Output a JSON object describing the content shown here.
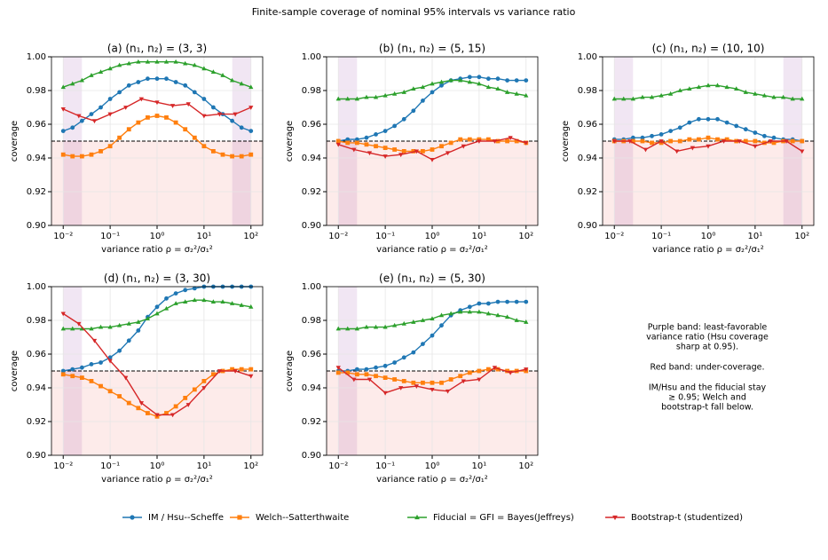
{
  "title": "Finite-sample coverage of nominal 95% intervals vs variance ratio",
  "legend": [
    {
      "name": "IM / Hsu--Scheffe",
      "color": "#1f77b4",
      "marker": "circle"
    },
    {
      "name": "Welch--Satterthwaite",
      "color": "#ff7f0e",
      "marker": "square"
    },
    {
      "name": "Fiducial = GFI = Bayes(Jeffreys)",
      "color": "#2ca02c",
      "marker": "triangle-up"
    },
    {
      "name": "Bootstrap-t (studentized)",
      "color": "#d62728",
      "marker": "triangle-down"
    }
  ],
  "note": [
    "Purple band: least-favorable",
    "variance ratio (Hsu coverage",
    "sharp at 0.95).",
    "Red band: under-coverage.",
    "IM/Hsu and the fiducial stay",
    "≥ 0.95; Welch and",
    "bootstrap-t fall below."
  ],
  "x": [
    0.01,
    0.0158,
    0.0251,
    0.0398,
    0.0631,
    0.1,
    0.158,
    0.251,
    0.398,
    0.631,
    1,
    1.58,
    2.51,
    3.98,
    6.31,
    10,
    15.8,
    25.1,
    39.8,
    63.1,
    100
  ],
  "x_boot": [
    0.01,
    0.0215,
    0.0464,
    0.1,
    0.215,
    0.464,
    1,
    2.15,
    4.64,
    10,
    21.5,
    46.4,
    100
  ],
  "chart_data": [
    {
      "type": "line",
      "title": "(a) (n₁, n₂) = (3, 3)",
      "xlabel": "variance ratio ρ = σ₂²/σ₁²",
      "ylabel": "coverage",
      "xscale": "log",
      "xlim": [
        0.00562,
        178
      ],
      "ylim": [
        0.9,
        1.0
      ],
      "xticks": [
        {
          "value": 0.01,
          "label": "10⁻²"
        },
        {
          "value": 0.1,
          "label": "10⁻¹"
        },
        {
          "value": 1,
          "label": "10⁰"
        },
        {
          "value": 10,
          "label": "10¹"
        },
        {
          "value": 100,
          "label": "10²"
        }
      ],
      "yticks": [
        {
          "value": 0.9,
          "label": "0.90"
        },
        0.92,
        0.94,
        0.96,
        0.98,
        {
          "value": 1.0,
          "label": "1.00"
        }
      ],
      "threshold": 0.95,
      "bands": [
        [
          0.01,
          0.025
        ],
        [
          40,
          100
        ]
      ],
      "series": [
        {
          "values": [
            0.956,
            0.958,
            0.962,
            0.966,
            0.97,
            0.975,
            0.979,
            0.983,
            0.985,
            0.987,
            0.987,
            0.987,
            0.985,
            0.983,
            0.979,
            0.975,
            0.97,
            0.966,
            0.962,
            0.958,
            0.956
          ]
        },
        {
          "values": [
            0.942,
            0.941,
            0.941,
            0.942,
            0.944,
            0.947,
            0.952,
            0.957,
            0.961,
            0.964,
            0.965,
            0.964,
            0.961,
            0.957,
            0.952,
            0.947,
            0.944,
            0.942,
            0.941,
            0.941,
            0.942
          ]
        },
        {
          "values": [
            0.982,
            0.984,
            0.986,
            0.989,
            0.991,
            0.993,
            0.995,
            0.996,
            0.997,
            0.997,
            0.997,
            0.997,
            0.997,
            0.996,
            0.995,
            0.993,
            0.991,
            0.989,
            0.986,
            0.984,
            0.982
          ]
        },
        {
          "values": [
            0.969,
            0.965,
            0.962,
            0.966,
            0.97,
            0.975,
            0.973,
            0.971,
            0.972,
            0.965,
            0.966,
            0.966,
            0.97
          ]
        }
      ]
    },
    {
      "type": "line",
      "title": "(b) (n₁, n₂) = (5, 15)",
      "xlabel": "variance ratio ρ = σ₂²/σ₁²",
      "ylabel": "coverage",
      "xscale": "log",
      "xlim": [
        0.00562,
        178
      ],
      "ylim": [
        0.9,
        1.0
      ],
      "xticks": [
        {
          "value": 0.01,
          "label": "10⁻²"
        },
        {
          "value": 0.1,
          "label": "10⁻¹"
        },
        {
          "value": 1,
          "label": "10⁰"
        },
        {
          "value": 10,
          "label": "10¹"
        },
        {
          "value": 100,
          "label": "10²"
        }
      ],
      "yticks": [
        {
          "value": 0.9,
          "label": "0.90"
        },
        0.92,
        0.94,
        0.96,
        0.98,
        {
          "value": 1.0,
          "label": "1.00"
        }
      ],
      "threshold": 0.95,
      "bands": [
        [
          0.01,
          0.025
        ]
      ],
      "series": [
        {
          "values": [
            0.95,
            0.951,
            0.951,
            0.952,
            0.954,
            0.956,
            0.959,
            0.963,
            0.968,
            0.974,
            0.979,
            0.983,
            0.986,
            0.987,
            0.988,
            0.988,
            0.987,
            0.987,
            0.986,
            0.986,
            0.986
          ]
        },
        {
          "values": [
            0.95,
            0.949,
            0.949,
            0.948,
            0.947,
            0.946,
            0.945,
            0.944,
            0.944,
            0.944,
            0.945,
            0.947,
            0.949,
            0.951,
            0.951,
            0.951,
            0.951,
            0.95,
            0.95,
            0.95,
            0.949
          ]
        },
        {
          "values": [
            0.975,
            0.975,
            0.975,
            0.976,
            0.976,
            0.977,
            0.978,
            0.979,
            0.981,
            0.982,
            0.984,
            0.985,
            0.986,
            0.986,
            0.985,
            0.984,
            0.982,
            0.981,
            0.979,
            0.978,
            0.977
          ]
        },
        {
          "values": [
            0.948,
            0.945,
            0.943,
            0.941,
            0.942,
            0.944,
            0.939,
            0.943,
            0.947,
            0.95,
            0.95,
            0.952,
            0.949
          ]
        }
      ]
    },
    {
      "type": "line",
      "title": "(c) (n₁, n₂) = (10, 10)",
      "xlabel": "variance ratio ρ = σ₂²/σ₁²",
      "ylabel": "coverage",
      "xscale": "log",
      "xlim": [
        0.00562,
        178
      ],
      "ylim": [
        0.9,
        1.0
      ],
      "xticks": [
        {
          "value": 0.01,
          "label": "10⁻²"
        },
        {
          "value": 0.1,
          "label": "10⁻¹"
        },
        {
          "value": 1,
          "label": "10⁰"
        },
        {
          "value": 10,
          "label": "10¹"
        },
        {
          "value": 100,
          "label": "10²"
        }
      ],
      "yticks": [
        {
          "value": 0.9,
          "label": "0.90"
        },
        0.92,
        0.94,
        0.96,
        0.98,
        {
          "value": 1.0,
          "label": "1.00"
        }
      ],
      "threshold": 0.95,
      "bands": [
        [
          0.01,
          0.025
        ],
        [
          40,
          100
        ]
      ],
      "series": [
        {
          "values": [
            0.951,
            0.951,
            0.952,
            0.952,
            0.953,
            0.954,
            0.956,
            0.958,
            0.961,
            0.963,
            0.963,
            0.963,
            0.961,
            0.959,
            0.957,
            0.955,
            0.953,
            0.952,
            0.951,
            0.951,
            0.95
          ]
        },
        {
          "values": [
            0.95,
            0.95,
            0.95,
            0.95,
            0.949,
            0.949,
            0.95,
            0.95,
            0.951,
            0.951,
            0.952,
            0.951,
            0.951,
            0.95,
            0.95,
            0.95,
            0.949,
            0.949,
            0.95,
            0.95,
            0.95
          ]
        },
        {
          "values": [
            0.975,
            0.975,
            0.975,
            0.976,
            0.976,
            0.977,
            0.978,
            0.98,
            0.981,
            0.982,
            0.983,
            0.983,
            0.982,
            0.981,
            0.979,
            0.978,
            0.977,
            0.976,
            0.976,
            0.975,
            0.975
          ]
        },
        {
          "values": [
            0.95,
            0.95,
            0.945,
            0.95,
            0.944,
            0.946,
            0.947,
            0.95,
            0.95,
            0.947,
            0.95,
            0.95,
            0.944
          ]
        }
      ]
    },
    {
      "type": "line",
      "title": "(d) (n₁, n₂) = (3, 30)",
      "xlabel": "variance ratio ρ = σ₂²/σ₁²",
      "ylabel": "coverage",
      "xscale": "log",
      "xlim": [
        0.00562,
        178
      ],
      "ylim": [
        0.9,
        1.0
      ],
      "xticks": [
        {
          "value": 0.01,
          "label": "10⁻²"
        },
        {
          "value": 0.1,
          "label": "10⁻¹"
        },
        {
          "value": 1,
          "label": "10⁰"
        },
        {
          "value": 10,
          "label": "10¹"
        },
        {
          "value": 100,
          "label": "10²"
        }
      ],
      "yticks": [
        {
          "value": 0.9,
          "label": "0.90"
        },
        0.92,
        0.94,
        0.96,
        0.98,
        {
          "value": 1.0,
          "label": "1.00"
        }
      ],
      "threshold": 0.95,
      "bands": [
        [
          0.01,
          0.025
        ]
      ],
      "series": [
        {
          "values": [
            0.95,
            0.951,
            0.952,
            0.954,
            0.955,
            0.958,
            0.962,
            0.968,
            0.974,
            0.982,
            0.988,
            0.993,
            0.996,
            0.998,
            0.999,
            1.0,
            1.0,
            1.0,
            1.0,
            1.0,
            1.0
          ]
        },
        {
          "values": [
            0.948,
            0.947,
            0.946,
            0.944,
            0.941,
            0.938,
            0.935,
            0.931,
            0.928,
            0.925,
            0.923,
            0.925,
            0.929,
            0.934,
            0.939,
            0.944,
            0.948,
            0.95,
            0.951,
            0.951,
            0.951
          ]
        },
        {
          "values": [
            0.975,
            0.975,
            0.975,
            0.975,
            0.976,
            0.976,
            0.977,
            0.978,
            0.979,
            0.981,
            0.984,
            0.987,
            0.99,
            0.991,
            0.992,
            0.992,
            0.991,
            0.991,
            0.99,
            0.989,
            0.988
          ]
        },
        {
          "values": [
            0.984,
            0.978,
            0.968,
            0.956,
            0.946,
            0.931,
            0.924,
            0.924,
            0.93,
            0.94,
            0.95,
            0.95,
            0.947
          ]
        }
      ]
    },
    {
      "type": "line",
      "title": "(e) (n₁, n₂) = (5, 30)",
      "xlabel": "variance ratio ρ = σ₂²/σ₁²",
      "ylabel": "coverage",
      "xscale": "log",
      "xlim": [
        0.00562,
        178
      ],
      "ylim": [
        0.9,
        1.0
      ],
      "xticks": [
        {
          "value": 0.01,
          "label": "10⁻²"
        },
        {
          "value": 0.1,
          "label": "10⁻¹"
        },
        {
          "value": 1,
          "label": "10⁰"
        },
        {
          "value": 10,
          "label": "10¹"
        },
        {
          "value": 100,
          "label": "10²"
        }
      ],
      "yticks": [
        {
          "value": 0.9,
          "label": "0.90"
        },
        0.92,
        0.94,
        0.96,
        0.98,
        {
          "value": 1.0,
          "label": "1.00"
        }
      ],
      "threshold": 0.95,
      "bands": [
        [
          0.01,
          0.025
        ]
      ],
      "series": [
        {
          "values": [
            0.95,
            0.95,
            0.951,
            0.951,
            0.952,
            0.953,
            0.955,
            0.958,
            0.961,
            0.966,
            0.971,
            0.977,
            0.983,
            0.986,
            0.988,
            0.99,
            0.99,
            0.991,
            0.991,
            0.991,
            0.991
          ]
        },
        {
          "values": [
            0.949,
            0.949,
            0.948,
            0.948,
            0.947,
            0.946,
            0.945,
            0.944,
            0.943,
            0.943,
            0.943,
            0.943,
            0.945,
            0.947,
            0.949,
            0.95,
            0.951,
            0.951,
            0.95,
            0.95,
            0.95
          ]
        },
        {
          "values": [
            0.975,
            0.975,
            0.975,
            0.976,
            0.976,
            0.976,
            0.977,
            0.978,
            0.979,
            0.98,
            0.981,
            0.983,
            0.984,
            0.985,
            0.985,
            0.985,
            0.984,
            0.983,
            0.982,
            0.98,
            0.979
          ]
        },
        {
          "values": [
            0.952,
            0.945,
            0.945,
            0.937,
            0.94,
            0.941,
            0.939,
            0.938,
            0.944,
            0.945,
            0.952,
            0.949,
            0.951
          ]
        }
      ]
    }
  ]
}
